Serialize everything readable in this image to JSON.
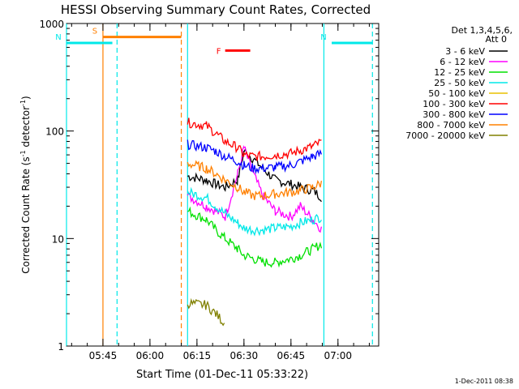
{
  "chart_data": {
    "type": "line",
    "title": "HESSI Observing Summary Count Rates, Corrected",
    "xlabel": "Start Time (01-Dec-11 05:33:22)",
    "ylabel": "Corrected Count Rate (s⁻¹ detector⁻¹)",
    "ylabel_main": "Corrected Count Rate (s",
    "ylabel_mid": " detector",
    "ylabel_end": ")",
    "ylabel_exp": "-1",
    "yscale": "log",
    "ylim": [
      1,
      1000
    ],
    "xlim": [
      "05:33:22",
      "07:13:00"
    ],
    "yticks": [
      "1",
      "10",
      "100",
      "1000"
    ],
    "xticks": [
      "05:45",
      "06:00",
      "06:15",
      "06:30",
      "06:45",
      "07:00"
    ],
    "legend_title": [
      "Det 1,3,4,5,6,",
      "Att 0"
    ],
    "legend_position": "right",
    "footer": "1-Dec-2011 08:38",
    "x_time_points": [
      "06:12",
      "06:18",
      "06:21",
      "06:24",
      "06:28",
      "06:30",
      "06:33",
      "06:36",
      "06:40",
      "06:45",
      "06:48",
      "06:52",
      "06:55"
    ],
    "series": [
      {
        "name": "3 - 6 keV",
        "color": "#000000",
        "values": [
          38,
          35,
          32,
          30,
          35,
          65,
          55,
          45,
          35,
          32,
          30,
          28,
          24
        ]
      },
      {
        "name": "6 - 12 keV",
        "color": "#ff00ff",
        "values": [
          25,
          20,
          18,
          16,
          40,
          70,
          40,
          25,
          18,
          16,
          20,
          15,
          12
        ]
      },
      {
        "name": "12 - 25 keV",
        "color": "#00e000",
        "values": [
          18,
          15,
          12,
          10,
          8,
          7,
          6.5,
          6,
          6,
          6.5,
          7,
          8,
          9
        ]
      },
      {
        "name": "25 - 50 keV",
        "color": "#00e8e8",
        "values": [
          27,
          24,
          20,
          17,
          14,
          12.5,
          12,
          12,
          12.5,
          13,
          14,
          15,
          16
        ]
      },
      {
        "name": "50 - 100 keV",
        "color": "#e8c000",
        "values": null
      },
      {
        "name": "100 - 300 keV",
        "color": "#ff0000",
        "values": [
          120,
          112,
          95,
          80,
          70,
          60,
          58,
          58,
          60,
          62,
          66,
          72,
          80
        ]
      },
      {
        "name": "300 - 800 keV",
        "color": "#0000ff",
        "values": [
          75,
          70,
          65,
          58,
          52,
          48,
          45,
          45,
          46,
          48,
          52,
          58,
          62
        ]
      },
      {
        "name": "800 - 7000 keV",
        "color": "#ff8000",
        "values": [
          50,
          45,
          40,
          35,
          30,
          27,
          25,
          25,
          26,
          27,
          28,
          30,
          33
        ]
      },
      {
        "name": "7000 - 20000 keV",
        "color": "#808000",
        "values": [
          2.5,
          2.4,
          2.0,
          1.6,
          null,
          null,
          null,
          null,
          null,
          null,
          null,
          null,
          null
        ]
      }
    ],
    "flags": [
      {
        "label": "S",
        "color": "#ff8000",
        "start": "05:45:00",
        "end": "06:10:00",
        "y": 750
      },
      {
        "label": "N",
        "color": "#00e8e8",
        "start": "05:33:22",
        "end": "05:48:00",
        "y": 660
      },
      {
        "label": "N",
        "color": "#00e8e8",
        "start": "06:58:00",
        "end": "07:11:00",
        "y": 660
      },
      {
        "label": "F",
        "color": "#ff0000",
        "start": "06:24:00",
        "end": "06:32:00",
        "y": 560
      }
    ],
    "vertical_markers": [
      {
        "time": "05:33:22",
        "color": "#00e8e8",
        "style": "solid"
      },
      {
        "time": "05:45:00",
        "color": "#ff8000",
        "style": "solid"
      },
      {
        "time": "05:49:30",
        "color": "#00e8e8",
        "style": "dashed"
      },
      {
        "time": "06:10:00",
        "color": "#ff8000",
        "style": "dashed"
      },
      {
        "time": "06:12:00",
        "color": "#00e8e8",
        "style": "solid"
      },
      {
        "time": "06:55:30",
        "color": "#00e8e8",
        "style": "solid"
      },
      {
        "time": "07:11:00",
        "color": "#00e8e8",
        "style": "dashed"
      }
    ]
  }
}
